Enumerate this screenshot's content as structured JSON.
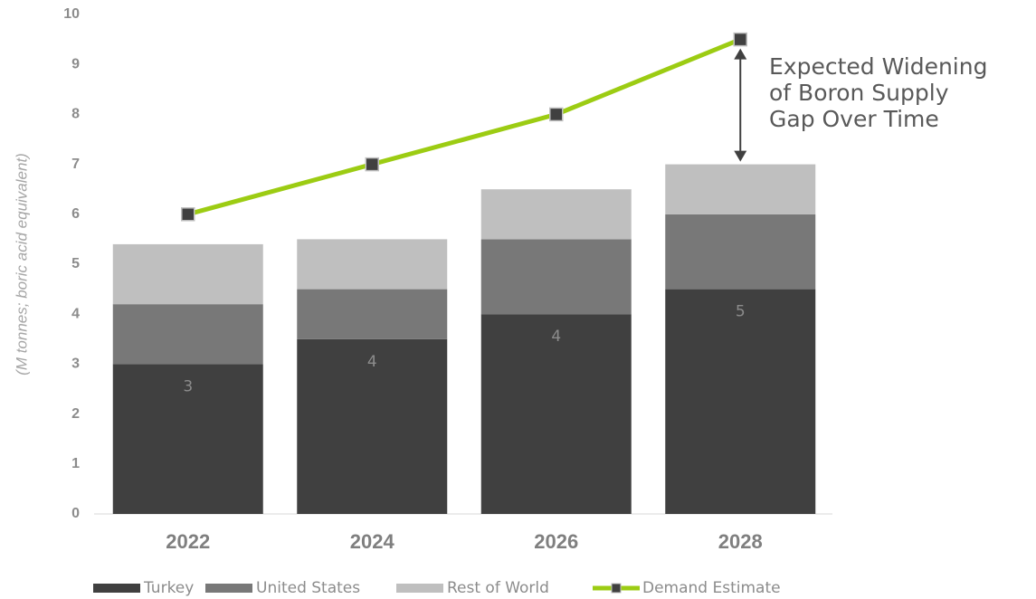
{
  "chart_data": {
    "type": "bar",
    "stacked": true,
    "y_label": "(M tonnes; boric acid equivalent)",
    "categories": [
      "2022",
      "2024",
      "2026",
      "2028"
    ],
    "series": [
      {
        "name": "Turkey",
        "color": "#404040",
        "values": [
          3,
          3.5,
          4,
          4.5
        ],
        "value_labels": [
          "3",
          "4",
          "4",
          "5"
        ]
      },
      {
        "name": "United States",
        "color": "#787878",
        "values": [
          1.2,
          1.0,
          1.5,
          1.5
        ]
      },
      {
        "name": "Rest of World",
        "color": "#bfbfbf",
        "values": [
          1.2,
          1.0,
          1.0,
          1.0
        ]
      },
      {
        "name": "Demand Estimate",
        "type": "line",
        "color": "#9ccc13",
        "marker_color": "#404040",
        "values": [
          6,
          7,
          8,
          9.5
        ]
      }
    ],
    "annotation": [
      "Expected Widening",
      "of Boron Supply",
      "Gap Over Time"
    ],
    "ylim": [
      0,
      10
    ],
    "yticks": [
      0,
      1,
      2,
      3,
      4,
      5,
      6,
      7,
      8,
      9,
      10
    ],
    "grid": false,
    "legend": "bottom"
  }
}
